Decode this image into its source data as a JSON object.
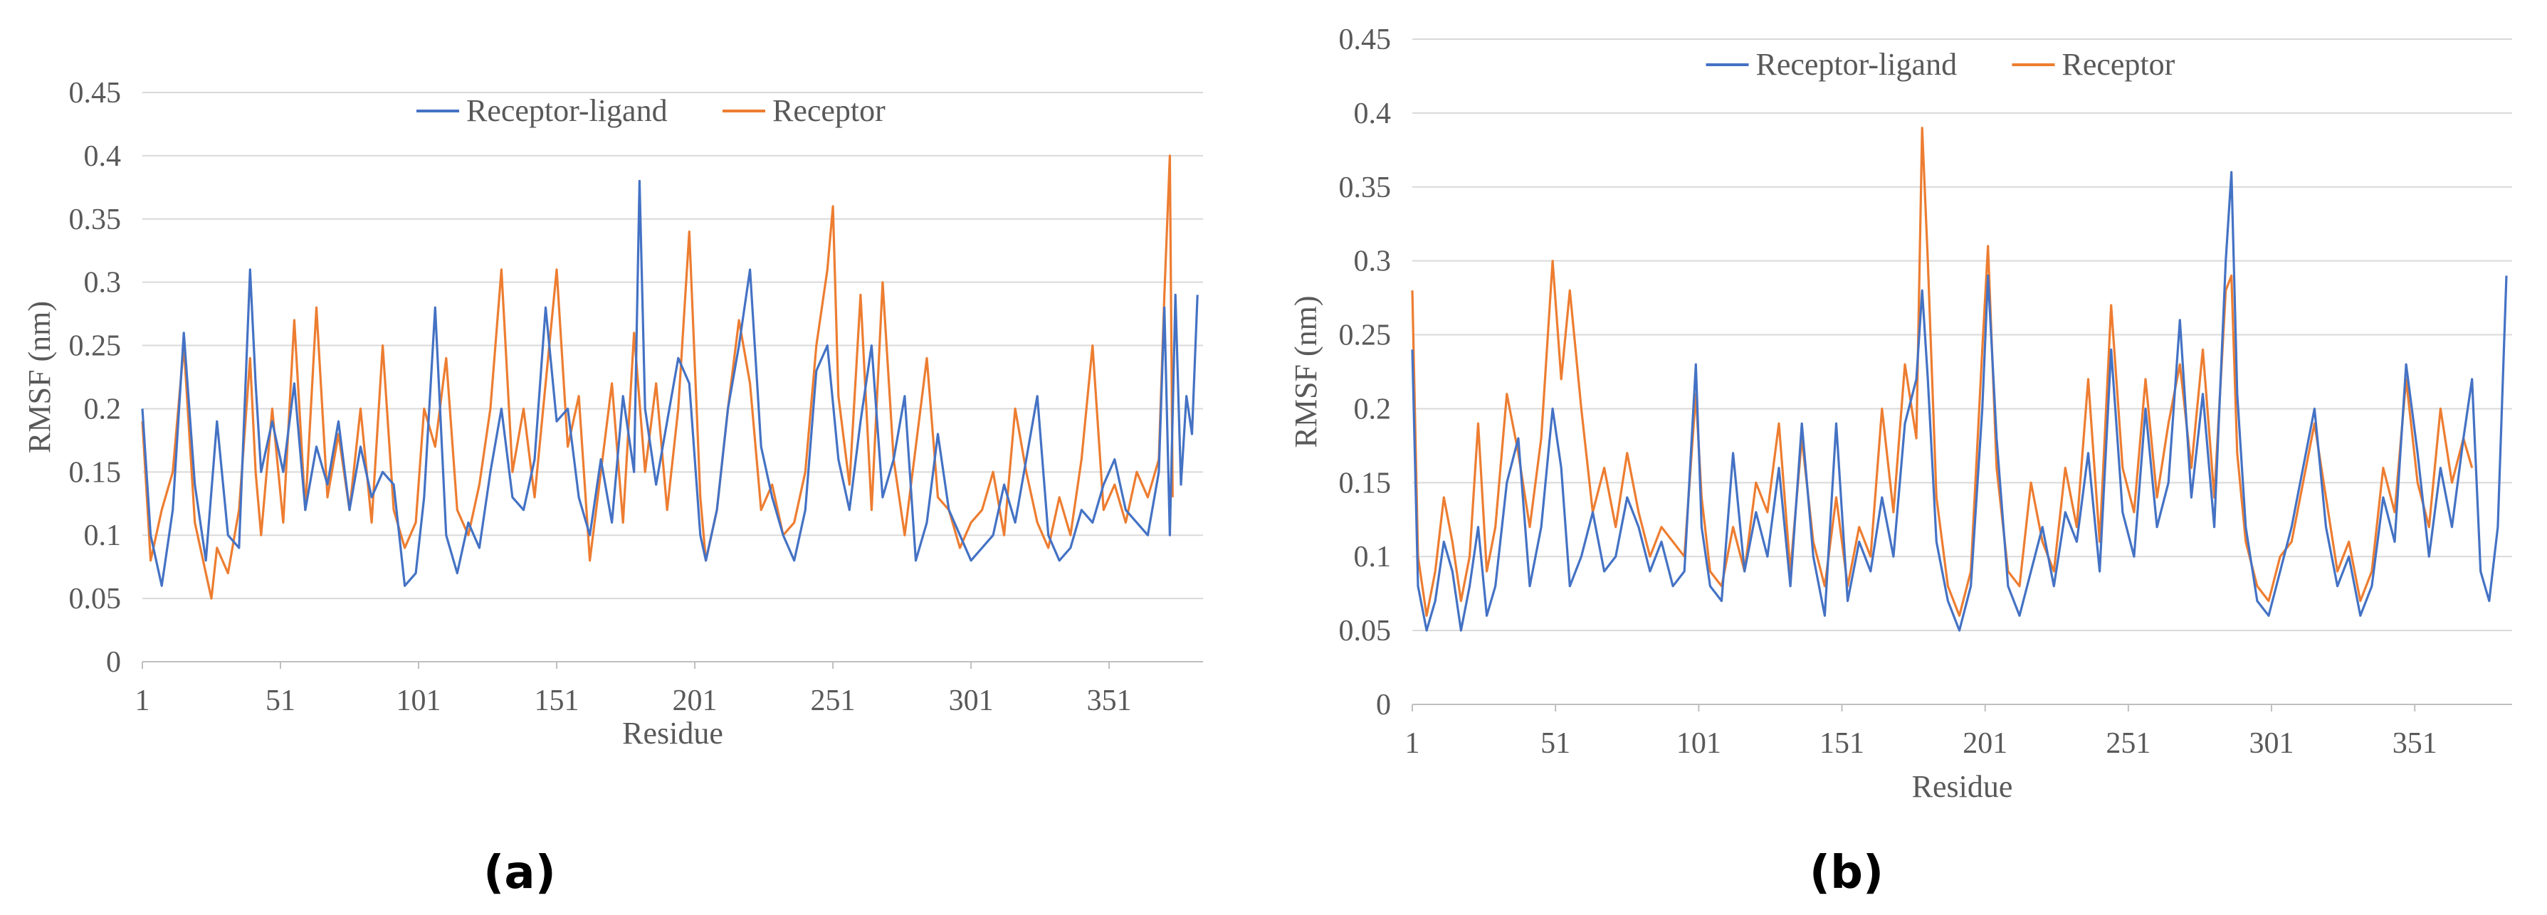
{
  "colors": {
    "receptor_ligand": "#4472C4",
    "receptor": "#ED7D31",
    "grid": "#D9D9D9",
    "text": "#595959"
  },
  "panels": [
    {
      "label": "(a)"
    },
    {
      "label": "(b)"
    }
  ],
  "chart_data": [
    {
      "type": "line",
      "title": "",
      "xlabel": "Residue",
      "ylabel": "RMSF (nm)",
      "ylim": [
        0,
        0.45
      ],
      "xlim": [
        1,
        385
      ],
      "yticks": [
        "0",
        "0.05",
        "0.1",
        "0.15",
        "0.2",
        "0.25",
        "0.3",
        "0.35",
        "0.4",
        "0.45"
      ],
      "xticks": [
        "1",
        "51",
        "101",
        "151",
        "201",
        "251",
        "301",
        "351"
      ],
      "grid": "horizontal",
      "legend": "top-center",
      "series": [
        {
          "name": "Receptor-ligand",
          "color": "#4472C4",
          "x": [
            1,
            4,
            8,
            12,
            16,
            20,
            24,
            28,
            32,
            36,
            40,
            42,
            44,
            48,
            52,
            56,
            60,
            64,
            68,
            72,
            76,
            80,
            84,
            88,
            92,
            96,
            100,
            103,
            107,
            111,
            115,
            119,
            123,
            127,
            131,
            135,
            139,
            143,
            147,
            151,
            155,
            159,
            163,
            167,
            171,
            175,
            179,
            181,
            183,
            187,
            191,
            195,
            199,
            203,
            205,
            209,
            213,
            217,
            221,
            225,
            229,
            233,
            237,
            241,
            245,
            249,
            253,
            257,
            261,
            265,
            269,
            273,
            277,
            281,
            285,
            289,
            293,
            297,
            301,
            305,
            309,
            313,
            317,
            321,
            325,
            329,
            333,
            337,
            341,
            345,
            349,
            353,
            357,
            361,
            365,
            369,
            371,
            373,
            375,
            377,
            379,
            381,
            383
          ],
          "y": [
            0.2,
            0.1,
            0.06,
            0.12,
            0.26,
            0.14,
            0.08,
            0.19,
            0.1,
            0.09,
            0.31,
            0.22,
            0.15,
            0.19,
            0.15,
            0.22,
            0.12,
            0.17,
            0.14,
            0.19,
            0.12,
            0.17,
            0.13,
            0.15,
            0.14,
            0.06,
            0.07,
            0.13,
            0.28,
            0.1,
            0.07,
            0.11,
            0.09,
            0.15,
            0.2,
            0.13,
            0.12,
            0.16,
            0.28,
            0.19,
            0.2,
            0.13,
            0.1,
            0.16,
            0.11,
            0.21,
            0.15,
            0.38,
            0.2,
            0.14,
            0.19,
            0.24,
            0.22,
            0.1,
            0.08,
            0.12,
            0.2,
            0.25,
            0.31,
            0.17,
            0.13,
            0.1,
            0.08,
            0.12,
            0.23,
            0.25,
            0.16,
            0.12,
            0.19,
            0.25,
            0.13,
            0.16,
            0.21,
            0.08,
            0.11,
            0.18,
            0.12,
            0.1,
            0.08,
            0.09,
            0.1,
            0.14,
            0.11,
            0.16,
            0.21,
            0.1,
            0.08,
            0.09,
            0.12,
            0.11,
            0.14,
            0.16,
            0.12,
            0.11,
            0.1,
            0.15,
            0.28,
            0.1,
            0.29,
            0.14,
            0.21,
            0.18,
            0.29
          ]
        },
        {
          "name": "Receptor",
          "color": "#ED7D31",
          "x": [
            1,
            4,
            8,
            12,
            16,
            20,
            24,
            26,
            28,
            32,
            36,
            40,
            42,
            44,
            48,
            52,
            56,
            60,
            64,
            68,
            72,
            76,
            80,
            84,
            88,
            92,
            96,
            100,
            103,
            107,
            111,
            115,
            119,
            123,
            127,
            131,
            135,
            139,
            143,
            147,
            151,
            155,
            159,
            163,
            167,
            171,
            175,
            179,
            183,
            187,
            191,
            195,
            199,
            203,
            205,
            209,
            213,
            217,
            221,
            225,
            229,
            233,
            237,
            241,
            245,
            249,
            251,
            253,
            257,
            261,
            265,
            269,
            273,
            277,
            281,
            285,
            289,
            293,
            297,
            301,
            305,
            309,
            313,
            317,
            321,
            325,
            329,
            333,
            337,
            341,
            345,
            349,
            353,
            357,
            361,
            365,
            369,
            371,
            373,
            374
          ],
          "y": [
            0.19,
            0.08,
            0.12,
            0.15,
            0.25,
            0.11,
            0.07,
            0.05,
            0.09,
            0.07,
            0.12,
            0.24,
            0.15,
            0.1,
            0.2,
            0.11,
            0.27,
            0.12,
            0.28,
            0.13,
            0.18,
            0.12,
            0.2,
            0.11,
            0.25,
            0.12,
            0.09,
            0.11,
            0.2,
            0.17,
            0.24,
            0.12,
            0.1,
            0.14,
            0.2,
            0.31,
            0.15,
            0.2,
            0.13,
            0.22,
            0.31,
            0.17,
            0.21,
            0.08,
            0.15,
            0.22,
            0.11,
            0.26,
            0.15,
            0.22,
            0.12,
            0.2,
            0.34,
            0.13,
            0.08,
            0.12,
            0.2,
            0.27,
            0.22,
            0.12,
            0.14,
            0.1,
            0.11,
            0.15,
            0.25,
            0.31,
            0.36,
            0.21,
            0.14,
            0.29,
            0.12,
            0.3,
            0.16,
            0.1,
            0.17,
            0.24,
            0.13,
            0.12,
            0.09,
            0.11,
            0.12,
            0.15,
            0.1,
            0.2,
            0.15,
            0.11,
            0.09,
            0.13,
            0.1,
            0.16,
            0.25,
            0.12,
            0.14,
            0.11,
            0.15,
            0.13,
            0.16,
            0.29,
            0.4,
            0.13
          ]
        }
      ]
    },
    {
      "type": "line",
      "title": "",
      "xlabel": "Residue",
      "ylabel": "RMSF (nm)",
      "ylim": [
        0,
        0.45
      ],
      "xlim": [
        1,
        385
      ],
      "yticks": [
        "0",
        "0.05",
        "0.1",
        "0.15",
        "0.2",
        "0.25",
        "0.3",
        "0.35",
        "0.4",
        "0.45"
      ],
      "xticks": [
        "1",
        "51",
        "101",
        "151",
        "201",
        "251",
        "301",
        "351"
      ],
      "grid": "horizontal",
      "legend": "top-center",
      "series": [
        {
          "name": "Receptor-ligand",
          "color": "#4472C4",
          "x": [
            1,
            3,
            6,
            9,
            12,
            15,
            18,
            21,
            24,
            27,
            30,
            34,
            38,
            42,
            46,
            50,
            53,
            56,
            60,
            64,
            68,
            72,
            76,
            80,
            84,
            88,
            92,
            96,
            100,
            102,
            105,
            109,
            113,
            117,
            121,
            125,
            129,
            133,
            137,
            141,
            145,
            149,
            153,
            157,
            161,
            165,
            169,
            173,
            177,
            179,
            181,
            184,
            188,
            192,
            196,
            200,
            202,
            205,
            209,
            213,
            217,
            221,
            225,
            229,
            233,
            237,
            241,
            245,
            249,
            253,
            257,
            261,
            265,
            269,
            273,
            277,
            281,
            285,
            287,
            289,
            292,
            296,
            300,
            304,
            308,
            312,
            316,
            320,
            324,
            328,
            332,
            336,
            340,
            344,
            348,
            352,
            356,
            360,
            364,
            368,
            371,
            374,
            377,
            380,
            383
          ],
          "y": [
            0.24,
            0.08,
            0.05,
            0.07,
            0.11,
            0.09,
            0.05,
            0.08,
            0.12,
            0.06,
            0.08,
            0.15,
            0.18,
            0.08,
            0.12,
            0.2,
            0.16,
            0.08,
            0.1,
            0.13,
            0.09,
            0.1,
            0.14,
            0.12,
            0.09,
            0.11,
            0.08,
            0.09,
            0.23,
            0.12,
            0.08,
            0.07,
            0.17,
            0.09,
            0.13,
            0.1,
            0.16,
            0.08,
            0.19,
            0.1,
            0.06,
            0.19,
            0.07,
            0.11,
            0.09,
            0.14,
            0.1,
            0.19,
            0.22,
            0.28,
            0.22,
            0.11,
            0.07,
            0.05,
            0.08,
            0.2,
            0.29,
            0.18,
            0.08,
            0.06,
            0.09,
            0.12,
            0.08,
            0.13,
            0.11,
            0.17,
            0.09,
            0.24,
            0.13,
            0.1,
            0.2,
            0.12,
            0.15,
            0.26,
            0.14,
            0.21,
            0.12,
            0.3,
            0.36,
            0.21,
            0.12,
            0.07,
            0.06,
            0.09,
            0.12,
            0.16,
            0.2,
            0.12,
            0.08,
            0.1,
            0.06,
            0.08,
            0.14,
            0.11,
            0.23,
            0.17,
            0.1,
            0.16,
            0.12,
            0.18,
            0.22,
            0.09,
            0.07,
            0.12,
            0.29
          ]
        },
        {
          "name": "Receptor",
          "color": "#ED7D31",
          "x": [
            1,
            3,
            6,
            9,
            12,
            15,
            18,
            21,
            24,
            27,
            30,
            34,
            38,
            42,
            46,
            50,
            53,
            56,
            60,
            64,
            68,
            72,
            76,
            80,
            84,
            88,
            92,
            96,
            100,
            102,
            105,
            109,
            113,
            117,
            121,
            125,
            129,
            133,
            137,
            141,
            145,
            149,
            153,
            157,
            161,
            165,
            169,
            173,
            177,
            179,
            181,
            184,
            188,
            192,
            196,
            200,
            202,
            205,
            209,
            213,
            217,
            221,
            225,
            229,
            233,
            237,
            241,
            245,
            249,
            253,
            257,
            261,
            265,
            269,
            273,
            277,
            281,
            285,
            287,
            289,
            292,
            296,
            300,
            304,
            308,
            312,
            316,
            320,
            324,
            328,
            332,
            336,
            340,
            344,
            348,
            352,
            356,
            360,
            364,
            368,
            371
          ],
          "y": [
            0.28,
            0.1,
            0.06,
            0.09,
            0.14,
            0.11,
            0.07,
            0.1,
            0.19,
            0.09,
            0.12,
            0.21,
            0.17,
            0.12,
            0.18,
            0.3,
            0.22,
            0.28,
            0.2,
            0.13,
            0.16,
            0.12,
            0.17,
            0.13,
            0.1,
            0.12,
            0.11,
            0.1,
            0.21,
            0.14,
            0.09,
            0.08,
            0.12,
            0.09,
            0.15,
            0.13,
            0.19,
            0.09,
            0.18,
            0.11,
            0.08,
            0.14,
            0.08,
            0.12,
            0.1,
            0.2,
            0.13,
            0.23,
            0.18,
            0.39,
            0.3,
            0.14,
            0.08,
            0.06,
            0.09,
            0.24,
            0.31,
            0.16,
            0.09,
            0.08,
            0.15,
            0.11,
            0.09,
            0.16,
            0.12,
            0.22,
            0.11,
            0.27,
            0.16,
            0.13,
            0.22,
            0.14,
            0.19,
            0.23,
            0.16,
            0.24,
            0.14,
            0.28,
            0.29,
            0.17,
            0.11,
            0.08,
            0.07,
            0.1,
            0.11,
            0.15,
            0.19,
            0.14,
            0.09,
            0.11,
            0.07,
            0.09,
            0.16,
            0.13,
            0.22,
            0.15,
            0.12,
            0.2,
            0.15,
            0.18,
            0.16
          ]
        }
      ]
    }
  ]
}
